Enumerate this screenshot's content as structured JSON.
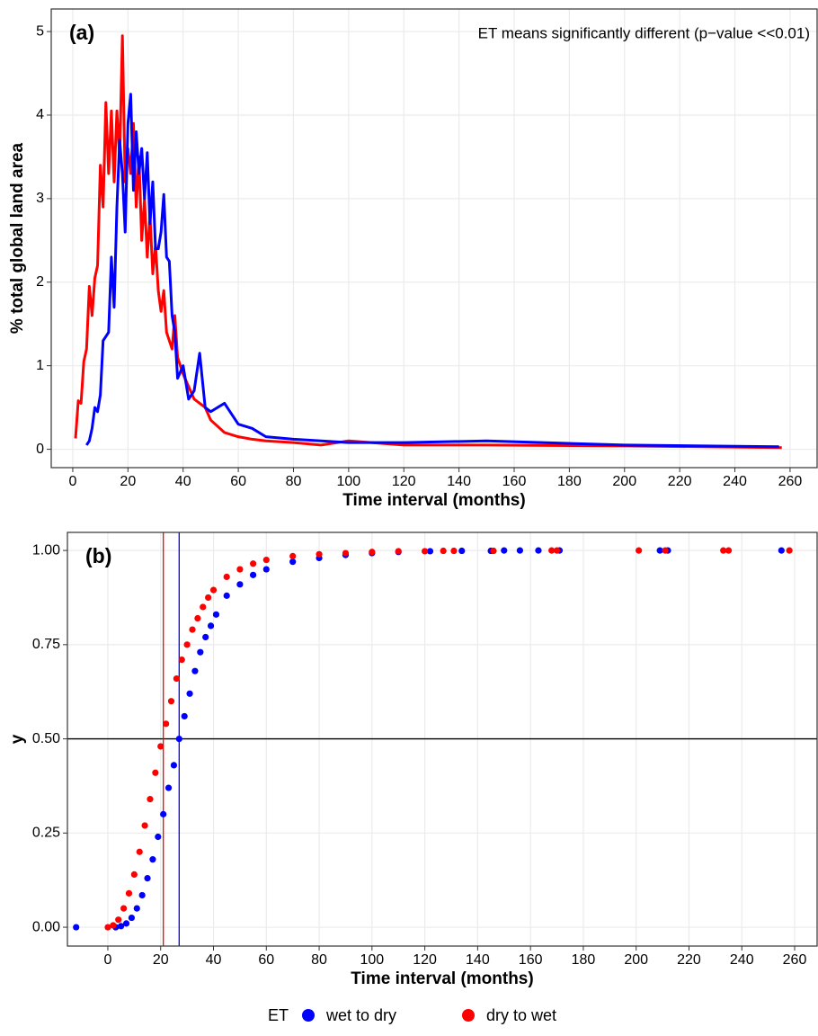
{
  "chart_data": [
    {
      "type": "line",
      "panel_label": "(a)",
      "annotation": "ET means significantly different (p−value <<0.01)",
      "xlabel": "Time interval (months)",
      "ylabel": "% total global land area",
      "xlim": [
        -7.8,
        269.8
      ],
      "ylim": [
        -0.22,
        5.27
      ],
      "xticks": [
        0,
        20,
        40,
        60,
        80,
        100,
        120,
        140,
        160,
        180,
        200,
        220,
        240,
        260
      ],
      "yticks": [
        0,
        1,
        2,
        3,
        4,
        5
      ],
      "grid": true,
      "series": [
        {
          "name": "dry to wet",
          "color": "#ff0000",
          "x": [
            1,
            2,
            3,
            4,
            5,
            6,
            7,
            8,
            9,
            10,
            11,
            12,
            13,
            14,
            15,
            16,
            17,
            18,
            19,
            20,
            21,
            22,
            23,
            24,
            25,
            26,
            27,
            28,
            29,
            30,
            31,
            32,
            33,
            34,
            35,
            36,
            37,
            38,
            40,
            42,
            44,
            46,
            48,
            50,
            55,
            60,
            65,
            70,
            80,
            90,
            100,
            120,
            150,
            200,
            257
          ],
          "values": [
            0.13,
            0.58,
            0.55,
            1.05,
            1.2,
            1.95,
            1.6,
            2.05,
            2.2,
            3.4,
            2.9,
            4.15,
            3.3,
            4.05,
            3.2,
            4.05,
            3.5,
            4.95,
            3.2,
            3.6,
            3.3,
            3.9,
            2.9,
            3.5,
            2.5,
            3.0,
            2.3,
            2.8,
            2.1,
            2.45,
            1.9,
            1.65,
            1.9,
            1.4,
            1.3,
            1.2,
            1.6,
            1.1,
            0.9,
            0.75,
            0.6,
            0.55,
            0.5,
            0.35,
            0.2,
            0.15,
            0.12,
            0.1,
            0.08,
            0.05,
            0.1,
            0.05,
            0.05,
            0.04,
            0.02
          ]
        },
        {
          "name": "wet to dry",
          "color": "#0000ff",
          "x": [
            5,
            6,
            7,
            8,
            9,
            10,
            11,
            12,
            13,
            14,
            15,
            16,
            17,
            18,
            19,
            20,
            21,
            22,
            23,
            24,
            25,
            26,
            27,
            28,
            29,
            30,
            31,
            32,
            33,
            34,
            35,
            36,
            37,
            38,
            40,
            42,
            44,
            46,
            48,
            50,
            55,
            60,
            65,
            70,
            80,
            90,
            100,
            120,
            150,
            200,
            256
          ],
          "values": [
            0.05,
            0.1,
            0.25,
            0.5,
            0.45,
            0.65,
            1.3,
            1.35,
            1.4,
            2.3,
            1.7,
            2.9,
            3.7,
            3.3,
            2.6,
            3.9,
            4.25,
            3.1,
            3.8,
            3.3,
            3.6,
            3.0,
            3.55,
            2.7,
            3.2,
            2.4,
            2.4,
            2.6,
            3.05,
            2.3,
            2.25,
            1.6,
            1.4,
            0.85,
            1.0,
            0.6,
            0.7,
            1.15,
            0.5,
            0.45,
            0.55,
            0.3,
            0.25,
            0.15,
            0.12,
            0.1,
            0.08,
            0.08,
            0.1,
            0.05,
            0.03
          ]
        }
      ]
    },
    {
      "type": "scatter",
      "panel_label": "(b)",
      "xlabel": "Time interval (months)",
      "ylabel": "y",
      "xlim": [
        -15.3,
        268.5
      ],
      "ylim": [
        -0.05,
        1.048
      ],
      "xticks": [
        0,
        20,
        40,
        60,
        80,
        100,
        120,
        140,
        160,
        180,
        200,
        220,
        240,
        260
      ],
      "yticks": [
        {
          "value": 0,
          "label": "0.00"
        },
        {
          "value": 0.25,
          "label": "0.25"
        },
        {
          "value": 0.5,
          "label": "0.50"
        },
        {
          "value": 0.75,
          "label": "0.75"
        },
        {
          "value": 1,
          "label": "1.00"
        }
      ],
      "grid": true,
      "hline": 0.5,
      "vlines": [
        {
          "value": 21,
          "color": "#ff0000"
        },
        {
          "value": 27,
          "color": "#0000ff"
        }
      ],
      "legend_title": "ET",
      "legend_position": "bottom",
      "series": [
        {
          "name": "wet to dry",
          "color": "#0000ff",
          "x": [
            -12,
            3,
            5,
            7,
            9,
            11,
            13,
            15,
            17,
            19,
            21,
            23,
            25,
            27,
            29,
            31,
            33,
            35,
            37,
            39,
            41,
            45,
            50,
            55,
            60,
            70,
            80,
            90,
            100,
            110,
            122,
            134,
            145,
            150,
            156,
            163,
            171,
            209,
            212,
            255
          ],
          "values": [
            0,
            0,
            0.003,
            0.01,
            0.025,
            0.05,
            0.085,
            0.13,
            0.18,
            0.24,
            0.3,
            0.37,
            0.43,
            0.5,
            0.56,
            0.62,
            0.68,
            0.73,
            0.77,
            0.8,
            0.83,
            0.88,
            0.91,
            0.935,
            0.95,
            0.97,
            0.98,
            0.988,
            0.993,
            0.996,
            0.998,
            0.999,
            0.999,
            1,
            1,
            1,
            1,
            1,
            1,
            1
          ]
        },
        {
          "name": "dry to wet",
          "color": "#ff0000",
          "x": [
            0,
            2,
            4,
            6,
            8,
            10,
            12,
            14,
            16,
            18,
            20,
            22,
            24,
            26,
            28,
            30,
            32,
            34,
            36,
            38,
            40,
            45,
            50,
            55,
            60,
            70,
            80,
            90,
            100,
            110,
            120,
            127,
            131,
            146,
            168,
            170,
            201,
            211,
            233,
            235,
            258
          ],
          "values": [
            0,
            0.005,
            0.02,
            0.05,
            0.09,
            0.14,
            0.2,
            0.27,
            0.34,
            0.41,
            0.48,
            0.54,
            0.6,
            0.66,
            0.71,
            0.75,
            0.79,
            0.82,
            0.85,
            0.875,
            0.895,
            0.93,
            0.95,
            0.965,
            0.975,
            0.985,
            0.99,
            0.993,
            0.996,
            0.998,
            0.998,
            0.999,
            0.999,
            0.999,
            1,
            1,
            1,
            1,
            1,
            1,
            1
          ]
        }
      ]
    }
  ]
}
